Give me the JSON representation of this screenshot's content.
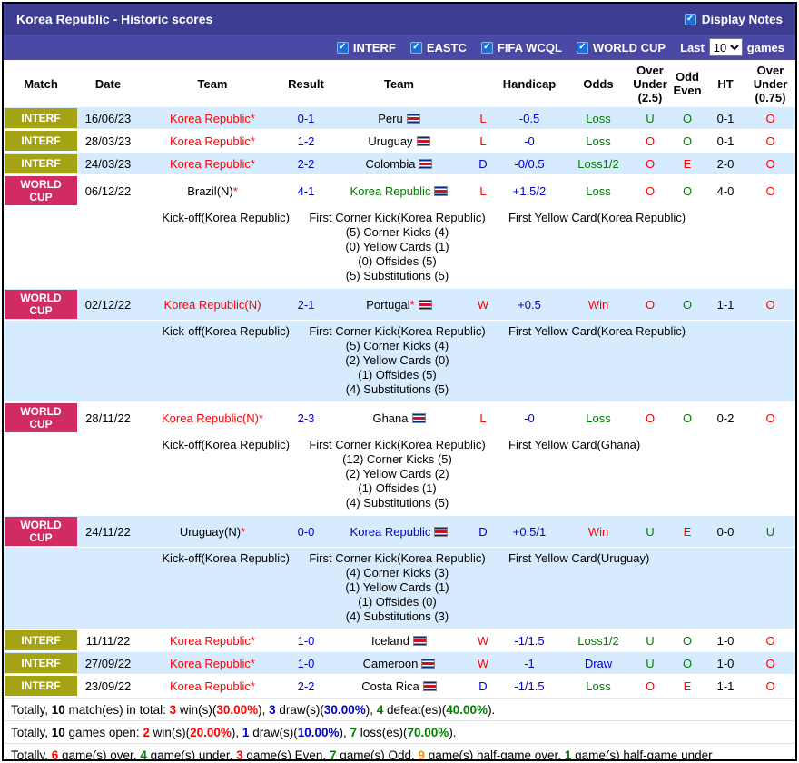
{
  "header": {
    "title": "Korea Republic - Historic scores",
    "display_notes_label": "Display Notes",
    "filters": [
      {
        "label": "INTERF",
        "checked": true
      },
      {
        "label": "EASTC",
        "checked": true
      },
      {
        "label": "FIFA WCQL",
        "checked": true
      },
      {
        "label": "WORLD CUP",
        "checked": true
      }
    ],
    "last_label": "Last",
    "last_value": "10",
    "games_label": "games"
  },
  "icons": {
    "check": "✓"
  },
  "colors": {
    "header_bar": "#3d3d91",
    "subheader_bar": "#4a4aa6",
    "row_alt": "#d7ebff",
    "interf_badge": "#a3a314",
    "worldcup_badge": "#d02b62",
    "checkbox": "#1a6fdc",
    "red": "#ff0000",
    "green": "#008000",
    "blue": "#0000cc",
    "orange": "#ff8c00"
  },
  "table": {
    "columns": [
      "Match",
      "Date",
      "Team",
      "Result",
      "Team",
      "",
      "Handicap",
      "Odds",
      "Over\nUnder\n(2.5)",
      "Odd\nEven",
      "HT",
      "Over\nUnder\n(0.75)"
    ],
    "rows": [
      {
        "badge": "INTERF",
        "badge_type": "interf",
        "shade": true,
        "date": "16/06/23",
        "team1": "Korea Republic*",
        "team1_color": "red",
        "result": "0-1",
        "team2": "Peru",
        "team2_color": "black",
        "team2_flag": false,
        "wld": "L",
        "wld_color": "red",
        "handicap": "-0.5",
        "odds": "Loss",
        "odds_color": "green",
        "ou25": "U",
        "ou25_color": "green",
        "oddeven": "O",
        "oddeven_color": "green",
        "ht": "0-1",
        "ou075": "O",
        "ou075_color": "red",
        "details": null
      },
      {
        "badge": "INTERF",
        "badge_type": "interf",
        "shade": false,
        "date": "28/03/23",
        "team1": "Korea Republic*",
        "team1_color": "red",
        "result": "1-2",
        "team2": "Uruguay",
        "team2_color": "black",
        "team2_flag": false,
        "wld": "L",
        "wld_color": "red",
        "handicap": "-0",
        "odds": "Loss",
        "odds_color": "green",
        "ou25": "O",
        "ou25_color": "red",
        "oddeven": "O",
        "oddeven_color": "green",
        "ht": "0-1",
        "ou075": "O",
        "ou075_color": "red",
        "details": null
      },
      {
        "badge": "INTERF",
        "badge_type": "interf",
        "shade": true,
        "date": "24/03/23",
        "team1": "Korea Republic*",
        "team1_color": "red",
        "result": "2-2",
        "team2": "Colombia",
        "team2_color": "black",
        "team2_flag": false,
        "wld": "D",
        "wld_color": "blue",
        "handicap": "-0/0.5",
        "odds": "Loss1/2",
        "odds_color": "green",
        "ou25": "O",
        "ou25_color": "red",
        "oddeven": "E",
        "oddeven_color": "red",
        "ht": "2-0",
        "ou075": "O",
        "ou075_color": "red",
        "details": null
      },
      {
        "badge": "WORLD CUP",
        "badge_type": "worldcup",
        "shade": false,
        "date": "06/12/22",
        "team1": "Brazil(N)*",
        "team1_color": "black",
        "result": "4-1",
        "team2": "Korea Republic",
        "team2_color": "green",
        "team2_flag": false,
        "wld": "L",
        "wld_color": "red",
        "handicap": "+1.5/2",
        "odds": "Loss",
        "odds_color": "green",
        "ou25": "O",
        "ou25_color": "red",
        "oddeven": "O",
        "oddeven_color": "green",
        "ht": "4-0",
        "ou075": "O",
        "ou075_color": "red",
        "details": {
          "kickoff": "Kick-off(Korea Republic)",
          "first_corner": "First Corner Kick(Korea Republic)",
          "first_yellow": "First Yellow Card(Korea Republic)",
          "stats": [
            "(5) Corner Kicks (4)",
            "(0) Yellow Cards (1)",
            "(0) Offsides (5)",
            "(5) Substitutions (5)"
          ]
        }
      },
      {
        "badge": "WORLD CUP",
        "badge_type": "worldcup",
        "shade": true,
        "date": "02/12/22",
        "team1": "Korea Republic(N)",
        "team1_color": "red",
        "result": "2-1",
        "team2": "Portugal*",
        "team2_color": "black",
        "team2_flag": false,
        "wld": "W",
        "wld_color": "red",
        "handicap": "+0.5",
        "odds": "Win",
        "odds_color": "red",
        "ou25": "O",
        "ou25_color": "red",
        "oddeven": "O",
        "oddeven_color": "green",
        "ht": "1-1",
        "ou075": "O",
        "ou075_color": "red",
        "details": {
          "kickoff": "Kick-off(Korea Republic)",
          "first_corner": "First Corner Kick(Korea Republic)",
          "first_yellow": "First Yellow Card(Korea Republic)",
          "stats": [
            "(5) Corner Kicks (4)",
            "(2) Yellow Cards (0)",
            "(1) Offsides (5)",
            "(4) Substitutions (5)"
          ]
        }
      },
      {
        "badge": "WORLD CUP",
        "badge_type": "worldcup",
        "shade": false,
        "date": "28/11/22",
        "team1": "Korea Republic(N)*",
        "team1_color": "red",
        "result": "2-3",
        "team2": "Ghana",
        "team2_color": "black",
        "team2_flag": false,
        "wld": "L",
        "wld_color": "red",
        "handicap": "-0",
        "odds": "Loss",
        "odds_color": "green",
        "ou25": "O",
        "ou25_color": "red",
        "oddeven": "O",
        "oddeven_color": "green",
        "ht": "0-2",
        "ou075": "O",
        "ou075_color": "red",
        "details": {
          "kickoff": "Kick-off(Korea Republic)",
          "first_corner": "First Corner Kick(Korea Republic)",
          "first_yellow": "First Yellow Card(Ghana)",
          "stats": [
            "(12) Corner Kicks (5)",
            "(2) Yellow Cards (2)",
            "(1) Offsides (1)",
            "(4) Substitutions (5)"
          ]
        }
      },
      {
        "badge": "WORLD CUP",
        "badge_type": "worldcup",
        "shade": true,
        "date": "24/11/22",
        "team1": "Uruguay(N)*",
        "team1_color": "black",
        "result": "0-0",
        "team2": "Korea Republic",
        "team2_color": "blue",
        "team2_flag": false,
        "wld": "D",
        "wld_color": "blue",
        "handicap": "+0.5/1",
        "odds": "Win",
        "odds_color": "red",
        "ou25": "U",
        "ou25_color": "green",
        "oddeven": "E",
        "oddeven_color": "red",
        "ht": "0-0",
        "ou075": "U",
        "ou075_color": "green",
        "details": {
          "kickoff": "Kick-off(Korea Republic)",
          "first_corner": "First Corner Kick(Korea Republic)",
          "first_yellow": "First Yellow Card(Uruguay)",
          "stats": [
            "(4) Corner Kicks (3)",
            "(1) Yellow Cards (1)",
            "(1) Offsides (0)",
            "(4) Substitutions (3)"
          ]
        }
      },
      {
        "badge": "INTERF",
        "badge_type": "interf",
        "shade": false,
        "date": "11/11/22",
        "team1": "Korea Republic*",
        "team1_color": "red",
        "result": "1-0",
        "team2": "Iceland",
        "team2_color": "black",
        "team2_flag": false,
        "wld": "W",
        "wld_color": "red",
        "handicap": "-1/1.5",
        "odds": "Loss1/2",
        "odds_color": "green",
        "ou25": "U",
        "ou25_color": "green",
        "oddeven": "O",
        "oddeven_color": "green",
        "ht": "1-0",
        "ou075": "O",
        "ou075_color": "red",
        "details": null
      },
      {
        "badge": "INTERF",
        "badge_type": "interf",
        "shade": true,
        "date": "27/09/22",
        "team1": "Korea Republic*",
        "team1_color": "red",
        "result": "1-0",
        "team2": "Cameroon",
        "team2_color": "black",
        "team2_flag": false,
        "wld": "W",
        "wld_color": "red",
        "handicap": "-1",
        "odds": "Draw",
        "odds_color": "blue",
        "ou25": "U",
        "ou25_color": "green",
        "oddeven": "O",
        "oddeven_color": "green",
        "ht": "1-0",
        "ou075": "O",
        "ou075_color": "red",
        "details": null
      },
      {
        "badge": "INTERF",
        "badge_type": "interf",
        "shade": false,
        "date": "23/09/22",
        "team1": "Korea Republic*",
        "team1_color": "red",
        "result": "2-2",
        "team2": "Costa Rica",
        "team2_color": "black",
        "team2_flag": true,
        "wld": "D",
        "wld_color": "blue",
        "handicap": "-1/1.5",
        "odds": "Loss",
        "odds_color": "green",
        "ou25": "O",
        "ou25_color": "red",
        "oddeven": "E",
        "oddeven_color": "red",
        "ht": "1-1",
        "ou075": "O",
        "ou075_color": "red",
        "details": null
      }
    ]
  },
  "footer": {
    "lines": [
      {
        "segments": [
          {
            "text": "Totally, "
          },
          {
            "text": "10",
            "bold": true
          },
          {
            "text": " match(es) in total: "
          },
          {
            "text": "3",
            "color": "red",
            "bold": true
          },
          {
            "text": " win(s)("
          },
          {
            "text": "30.00%",
            "color": "red",
            "bold": true
          },
          {
            "text": "), "
          },
          {
            "text": "3",
            "color": "blue",
            "bold": true
          },
          {
            "text": " draw(s)("
          },
          {
            "text": "30.00%",
            "color": "blue",
            "bold": true
          },
          {
            "text": "), "
          },
          {
            "text": "4",
            "color": "green",
            "bold": true
          },
          {
            "text": " defeat(es)("
          },
          {
            "text": "40.00%",
            "color": "green",
            "bold": true
          },
          {
            "text": ")."
          }
        ]
      },
      {
        "segments": [
          {
            "text": "Totally, "
          },
          {
            "text": "10",
            "bold": true
          },
          {
            "text": " games open: "
          },
          {
            "text": "2",
            "color": "red",
            "bold": true
          },
          {
            "text": " win(s)("
          },
          {
            "text": "20.00%",
            "color": "red",
            "bold": true
          },
          {
            "text": "), "
          },
          {
            "text": "1",
            "color": "blue",
            "bold": true
          },
          {
            "text": " draw(s)("
          },
          {
            "text": "10.00%",
            "color": "blue",
            "bold": true
          },
          {
            "text": "), "
          },
          {
            "text": "7",
            "color": "green",
            "bold": true
          },
          {
            "text": " loss(es)("
          },
          {
            "text": "70.00%",
            "color": "green",
            "bold": true
          },
          {
            "text": ")."
          }
        ]
      },
      {
        "segments": [
          {
            "text": "Totally, "
          },
          {
            "text": "6",
            "color": "red",
            "bold": true
          },
          {
            "text": " game(s) over, "
          },
          {
            "text": "4",
            "color": "green",
            "bold": true
          },
          {
            "text": " game(s) under, "
          },
          {
            "text": "3",
            "color": "red",
            "bold": true
          },
          {
            "text": " game(s) Even, "
          },
          {
            "text": "7",
            "color": "green",
            "bold": true
          },
          {
            "text": " game(s) Odd, "
          },
          {
            "text": "9",
            "color": "orange",
            "bold": true
          },
          {
            "text": " game(s) half-game over, "
          },
          {
            "text": "1",
            "color": "green",
            "bold": true
          },
          {
            "text": " game(s) half-game under"
          }
        ]
      }
    ]
  }
}
